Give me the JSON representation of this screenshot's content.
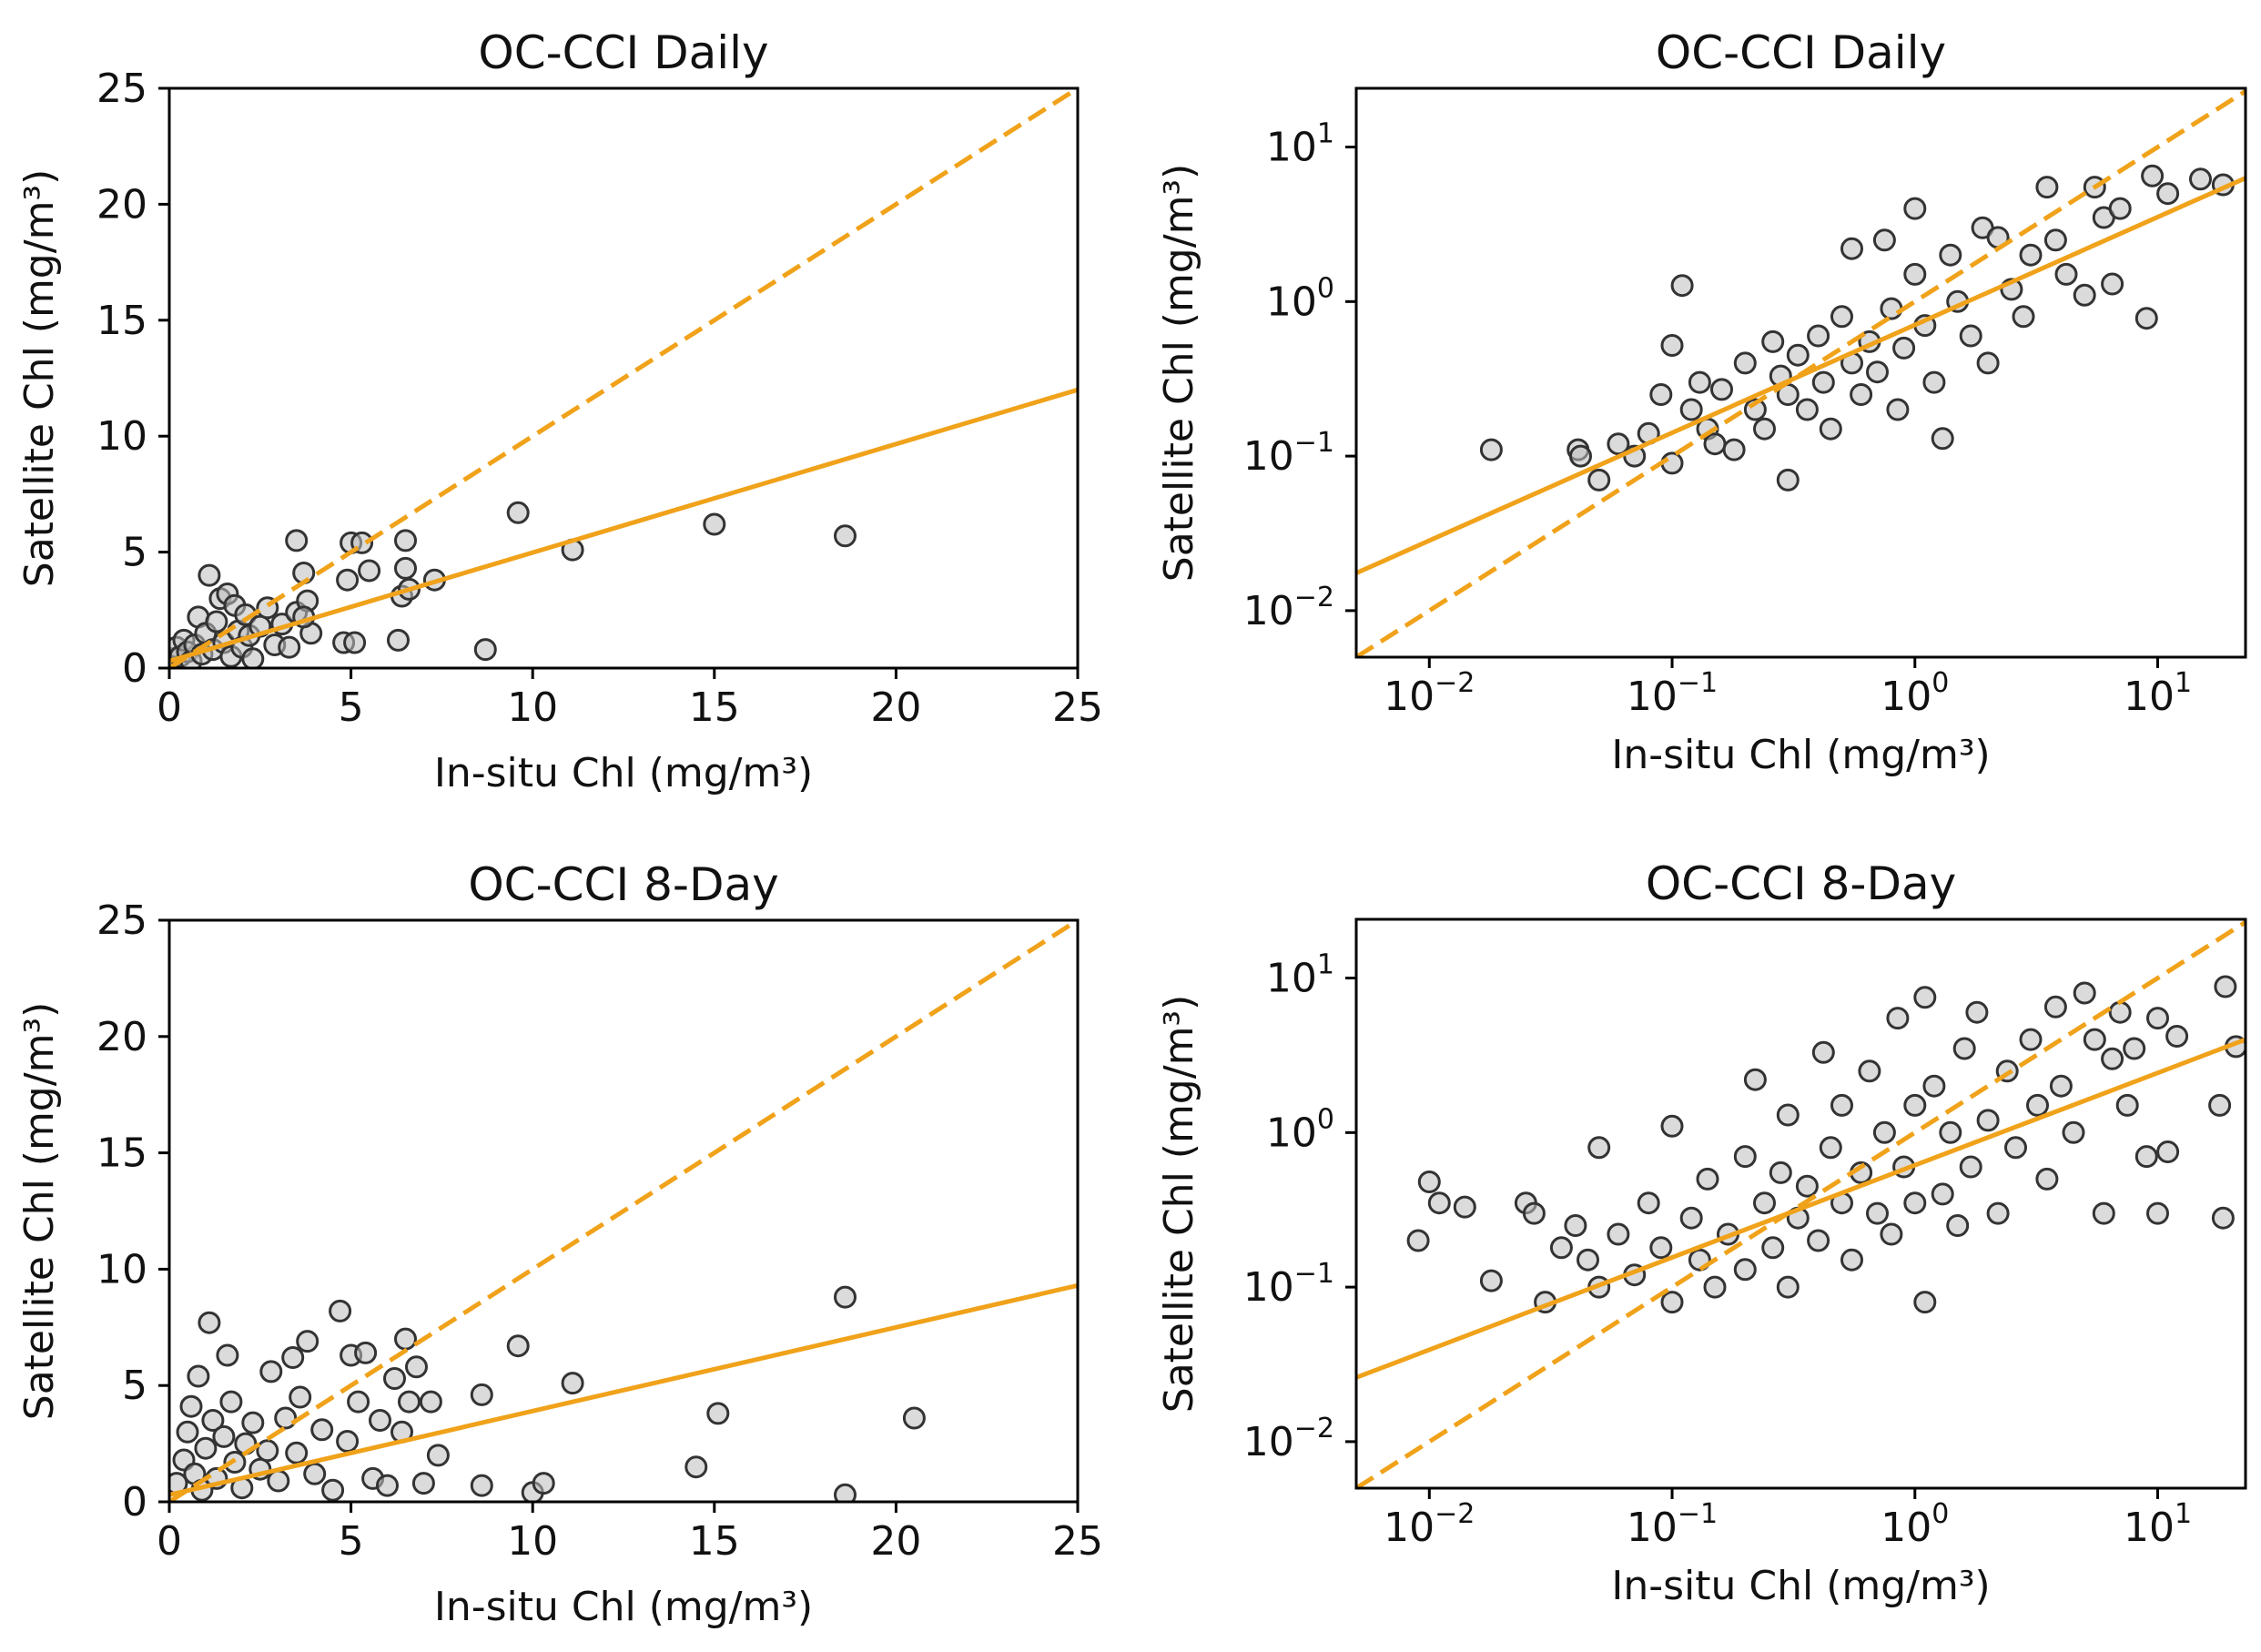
{
  "chart_data": [
    {
      "type": "scatter",
      "title": "OC-CCI Daily",
      "xlabel": "In-situ Chl (mg/m³)",
      "ylabel": "Satellite Chl (mg/m³)",
      "xscale": "linear",
      "yscale": "linear",
      "xlim": [
        0,
        25
      ],
      "ylim": [
        0,
        25
      ],
      "xticks": [
        0,
        5,
        10,
        15,
        20,
        25
      ],
      "yticks": [
        0,
        5,
        10,
        15,
        20,
        25
      ],
      "xtick_labels": [
        "0",
        "5",
        "10",
        "15",
        "20",
        "25"
      ],
      "ytick_labels": [
        "0",
        "5",
        "10",
        "15",
        "20",
        "25"
      ],
      "lines": [
        {
          "name": "1:1 line",
          "style": "dashed",
          "color": "#f0a21a",
          "points": [
            [
              0,
              0
            ],
            [
              25,
              25
            ]
          ]
        },
        {
          "name": "regression fit",
          "style": "solid",
          "color": "#f0a21a",
          "points": [
            [
              0,
              0.3
            ],
            [
              25,
              12.0
            ]
          ]
        }
      ],
      "points": [
        [
          0.1,
          0.4
        ],
        [
          0.2,
          0.9
        ],
        [
          0.3,
          0.5
        ],
        [
          0.4,
          1.2
        ],
        [
          0.5,
          0.7
        ],
        [
          0.6,
          0.3
        ],
        [
          0.7,
          1.0
        ],
        [
          0.8,
          2.2
        ],
        [
          0.9,
          0.6
        ],
        [
          1.0,
          1.5
        ],
        [
          1.1,
          4.0
        ],
        [
          1.2,
          0.8
        ],
        [
          1.3,
          2.0
        ],
        [
          1.4,
          3.0
        ],
        [
          1.5,
          1.1
        ],
        [
          1.6,
          3.2
        ],
        [
          1.7,
          0.5
        ],
        [
          1.8,
          2.7
        ],
        [
          1.9,
          1.6
        ],
        [
          2.0,
          0.9
        ],
        [
          2.1,
          2.3
        ],
        [
          2.2,
          1.4
        ],
        [
          2.3,
          0.4
        ],
        [
          2.5,
          1.8
        ],
        [
          2.7,
          2.6
        ],
        [
          2.9,
          1.0
        ],
        [
          3.1,
          1.9
        ],
        [
          3.3,
          0.9
        ],
        [
          3.5,
          2.4
        ],
        [
          3.5,
          5.5
        ],
        [
          3.7,
          4.1
        ],
        [
          3.8,
          2.9
        ],
        [
          3.9,
          1.5
        ],
        [
          3.7,
          2.2
        ],
        [
          4.8,
          1.1
        ],
        [
          4.9,
          3.8
        ],
        [
          5.0,
          5.4
        ],
        [
          5.1,
          1.1
        ],
        [
          5.3,
          5.4
        ],
        [
          5.5,
          4.2
        ],
        [
          6.3,
          1.2
        ],
        [
          6.4,
          3.1
        ],
        [
          6.5,
          5.5
        ],
        [
          6.5,
          4.3
        ],
        [
          6.6,
          3.4
        ],
        [
          7.3,
          3.8
        ],
        [
          8.7,
          0.8
        ],
        [
          9.6,
          6.7
        ],
        [
          11.1,
          5.1
        ],
        [
          15.0,
          6.2
        ],
        [
          18.6,
          5.7
        ]
      ]
    },
    {
      "type": "scatter",
      "title": "OC-CCI Daily",
      "xlabel": "In-situ Chl (mg/m³)",
      "ylabel": "Satellite Chl (mg/m³)",
      "xscale": "log",
      "yscale": "log",
      "xlim": [
        0.005,
        23
      ],
      "ylim": [
        0.005,
        24
      ],
      "xticks": [
        0.01,
        0.1,
        1,
        10
      ],
      "yticks": [
        0.01,
        0.1,
        1,
        10
      ],
      "xtick_exponents": [
        "−2",
        "−1",
        "0",
        "1"
      ],
      "ytick_exponents": [
        "−2",
        "−1",
        "0",
        "1"
      ],
      "tick_base": "10",
      "lines": [
        {
          "name": "1:1 line",
          "style": "dashed",
          "color": "#f0a21a",
          "points": [
            [
              0.005,
              0.005
            ],
            [
              23,
              23
            ]
          ]
        },
        {
          "name": "regression fit",
          "style": "solid",
          "color": "#f0a21a",
          "points": [
            [
              0.005,
              0.0175
            ],
            [
              23,
              6.3
            ]
          ]
        }
      ],
      "points": [
        [
          0.018,
          0.11
        ],
        [
          0.041,
          0.11
        ],
        [
          0.042,
          0.1
        ],
        [
          0.05,
          0.07
        ],
        [
          0.06,
          0.12
        ],
        [
          0.07,
          0.1
        ],
        [
          0.08,
          0.14
        ],
        [
          0.09,
          0.25
        ],
        [
          0.1,
          0.52
        ],
        [
          0.1,
          0.09
        ],
        [
          0.11,
          1.27
        ],
        [
          0.12,
          0.2
        ],
        [
          0.13,
          0.3
        ],
        [
          0.14,
          0.15
        ],
        [
          0.15,
          0.12
        ],
        [
          0.16,
          0.27
        ],
        [
          0.18,
          0.11
        ],
        [
          0.2,
          0.4
        ],
        [
          0.22,
          0.2
        ],
        [
          0.24,
          0.15
        ],
        [
          0.26,
          0.55
        ],
        [
          0.28,
          0.33
        ],
        [
          0.3,
          0.07
        ],
        [
          0.3,
          0.25
        ],
        [
          0.33,
          0.45
        ],
        [
          0.36,
          0.2
        ],
        [
          0.4,
          0.6
        ],
        [
          0.42,
          0.3
        ],
        [
          0.45,
          0.15
        ],
        [
          0.5,
          0.8
        ],
        [
          0.55,
          2.2
        ],
        [
          0.55,
          0.4
        ],
        [
          0.6,
          0.25
        ],
        [
          0.65,
          0.55
        ],
        [
          0.7,
          0.35
        ],
        [
          0.75,
          2.5
        ],
        [
          0.8,
          0.9
        ],
        [
          0.85,
          0.2
        ],
        [
          0.9,
          0.5
        ],
        [
          1.0,
          4.0
        ],
        [
          1.0,
          1.5
        ],
        [
          1.1,
          0.7
        ],
        [
          1.2,
          0.3
        ],
        [
          1.3,
          0.13
        ],
        [
          1.4,
          2.0
        ],
        [
          1.5,
          1.0
        ],
        [
          1.7,
          0.6
        ],
        [
          1.9,
          3.0
        ],
        [
          2.0,
          0.4
        ],
        [
          2.2,
          2.6
        ],
        [
          2.5,
          1.2
        ],
        [
          2.8,
          0.8
        ],
        [
          3.0,
          2.0
        ],
        [
          3.5,
          5.5
        ],
        [
          3.8,
          2.5
        ],
        [
          4.2,
          1.5
        ],
        [
          5.0,
          1.1
        ],
        [
          5.5,
          5.5
        ],
        [
          6.0,
          3.5
        ],
        [
          6.5,
          1.3
        ],
        [
          7.0,
          4.0
        ],
        [
          9.0,
          0.78
        ],
        [
          9.5,
          6.5
        ],
        [
          11.0,
          5.0
        ],
        [
          15.0,
          6.2
        ],
        [
          18.6,
          5.7
        ]
      ]
    },
    {
      "type": "scatter",
      "title": "OC-CCI 8-Day",
      "xlabel": "In-situ Chl (mg/m³)",
      "ylabel": "Satellite Chl (mg/m³)",
      "xscale": "linear",
      "yscale": "linear",
      "xlim": [
        0,
        25
      ],
      "ylim": [
        0,
        25
      ],
      "xticks": [
        0,
        5,
        10,
        15,
        20,
        25
      ],
      "yticks": [
        0,
        5,
        10,
        15,
        20,
        25
      ],
      "xtick_labels": [
        "0",
        "5",
        "10",
        "15",
        "20",
        "25"
      ],
      "ytick_labels": [
        "0",
        "5",
        "10",
        "15",
        "20",
        "25"
      ],
      "lines": [
        {
          "name": "1:1 line",
          "style": "dashed",
          "color": "#f0a21a",
          "points": [
            [
              0,
              0
            ],
            [
              25,
              25
            ]
          ]
        },
        {
          "name": "regression fit",
          "style": "solid",
          "color": "#f0a21a",
          "points": [
            [
              0,
              0.3
            ],
            [
              25,
              9.3
            ]
          ]
        }
      ],
      "points": [
        [
          0.2,
          0.8
        ],
        [
          0.4,
          1.8
        ],
        [
          0.5,
          3.0
        ],
        [
          0.6,
          4.1
        ],
        [
          0.7,
          1.2
        ],
        [
          0.8,
          5.4
        ],
        [
          0.9,
          0.5
        ],
        [
          1.0,
          2.3
        ],
        [
          1.1,
          7.7
        ],
        [
          1.2,
          3.5
        ],
        [
          1.3,
          1.0
        ],
        [
          1.5,
          2.8
        ],
        [
          1.6,
          6.3
        ],
        [
          1.7,
          4.3
        ],
        [
          1.8,
          1.7
        ],
        [
          2.0,
          0.6
        ],
        [
          2.1,
          2.5
        ],
        [
          2.3,
          3.4
        ],
        [
          2.5,
          1.4
        ],
        [
          2.7,
          2.2
        ],
        [
          2.8,
          5.6
        ],
        [
          3.0,
          0.9
        ],
        [
          3.2,
          3.6
        ],
        [
          3.4,
          6.2
        ],
        [
          3.5,
          2.1
        ],
        [
          3.6,
          4.5
        ],
        [
          3.8,
          6.9
        ],
        [
          4.0,
          1.2
        ],
        [
          4.2,
          3.1
        ],
        [
          4.5,
          0.5
        ],
        [
          4.7,
          8.2
        ],
        [
          4.9,
          2.6
        ],
        [
          5.0,
          6.3
        ],
        [
          5.2,
          4.3
        ],
        [
          5.4,
          6.4
        ],
        [
          5.6,
          1.0
        ],
        [
          5.8,
          3.5
        ],
        [
          6.0,
          0.7
        ],
        [
          6.2,
          5.3
        ],
        [
          6.4,
          3.0
        ],
        [
          6.6,
          4.3
        ],
        [
          6.5,
          7.0
        ],
        [
          6.8,
          5.8
        ],
        [
          7.0,
          0.8
        ],
        [
          7.2,
          4.3
        ],
        [
          7.4,
          2.0
        ],
        [
          8.6,
          4.6
        ],
        [
          8.6,
          0.7
        ],
        [
          9.6,
          6.7
        ],
        [
          10.0,
          0.4
        ],
        [
          10.3,
          0.8
        ],
        [
          11.1,
          5.1
        ],
        [
          14.5,
          1.5
        ],
        [
          15.1,
          3.8
        ],
        [
          18.6,
          8.8
        ],
        [
          18.6,
          0.3
        ],
        [
          20.5,
          3.6
        ]
      ]
    },
    {
      "type": "scatter",
      "title": "OC-CCI 8-Day",
      "xlabel": "In-situ Chl (mg/m³)",
      "ylabel": "Satellite Chl (mg/m³)",
      "xscale": "log",
      "yscale": "log",
      "xlim": [
        0.005,
        23
      ],
      "ylim": [
        0.005,
        24
      ],
      "xticks": [
        0.01,
        0.1,
        1,
        10
      ],
      "yticks": [
        0.01,
        0.1,
        1,
        10
      ],
      "xtick_exponents": [
        "−2",
        "−1",
        "0",
        "1"
      ],
      "ytick_exponents": [
        "−2",
        "−1",
        "0",
        "1"
      ],
      "tick_base": "10",
      "lines": [
        {
          "name": "1:1 line",
          "style": "dashed",
          "color": "#f0a21a",
          "points": [
            [
              0.005,
              0.005
            ],
            [
              23,
              23
            ]
          ]
        },
        {
          "name": "regression fit",
          "style": "solid",
          "color": "#f0a21a",
          "points": [
            [
              0.005,
              0.026
            ],
            [
              23,
              4.0
            ]
          ]
        }
      ],
      "points": [
        [
          0.009,
          0.2
        ],
        [
          0.01,
          0.48
        ],
        [
          0.011,
          0.35
        ],
        [
          0.014,
          0.33
        ],
        [
          0.018,
          0.11
        ],
        [
          0.025,
          0.35
        ],
        [
          0.027,
          0.3
        ],
        [
          0.03,
          0.08
        ],
        [
          0.035,
          0.18
        ],
        [
          0.04,
          0.25
        ],
        [
          0.045,
          0.15
        ],
        [
          0.05,
          0.8
        ],
        [
          0.05,
          0.1
        ],
        [
          0.06,
          0.22
        ],
        [
          0.07,
          0.12
        ],
        [
          0.08,
          0.35
        ],
        [
          0.09,
          0.18
        ],
        [
          0.1,
          1.1
        ],
        [
          0.1,
          0.08
        ],
        [
          0.12,
          0.28
        ],
        [
          0.13,
          0.15
        ],
        [
          0.14,
          0.5
        ],
        [
          0.15,
          0.1
        ],
        [
          0.17,
          0.22
        ],
        [
          0.2,
          0.7
        ],
        [
          0.2,
          0.13
        ],
        [
          0.22,
          2.2
        ],
        [
          0.24,
          0.35
        ],
        [
          0.26,
          0.18
        ],
        [
          0.28,
          0.55
        ],
        [
          0.3,
          0.1
        ],
        [
          0.3,
          1.3
        ],
        [
          0.33,
          0.28
        ],
        [
          0.36,
          0.45
        ],
        [
          0.4,
          0.2
        ],
        [
          0.42,
          3.3
        ],
        [
          0.45,
          0.8
        ],
        [
          0.5,
          0.35
        ],
        [
          0.5,
          1.5
        ],
        [
          0.55,
          0.15
        ],
        [
          0.6,
          0.55
        ],
        [
          0.65,
          2.5
        ],
        [
          0.7,
          0.3
        ],
        [
          0.75,
          1.0
        ],
        [
          0.8,
          0.22
        ],
        [
          0.85,
          5.5
        ],
        [
          0.9,
          0.6
        ],
        [
          1.0,
          1.5
        ],
        [
          1.0,
          0.35
        ],
        [
          1.1,
          7.5
        ],
        [
          1.1,
          0.08
        ],
        [
          1.2,
          2.0
        ],
        [
          1.3,
          0.4
        ],
        [
          1.4,
          1.0
        ],
        [
          1.5,
          0.25
        ],
        [
          1.6,
          3.5
        ],
        [
          1.7,
          0.6
        ],
        [
          1.8,
          6.0
        ],
        [
          2.0,
          1.2
        ],
        [
          2.2,
          0.3
        ],
        [
          2.4,
          2.5
        ],
        [
          2.6,
          0.8
        ],
        [
          3.0,
          4.0
        ],
        [
          3.2,
          1.5
        ],
        [
          3.5,
          0.5
        ],
        [
          3.8,
          6.5
        ],
        [
          4.0,
          2.0
        ],
        [
          4.5,
          1.0
        ],
        [
          5.0,
          8.0
        ],
        [
          5.5,
          4.0
        ],
        [
          6.0,
          0.3
        ],
        [
          6.5,
          3.0
        ],
        [
          7.0,
          6.0
        ],
        [
          7.5,
          1.5
        ],
        [
          8.0,
          3.5
        ],
        [
          9.0,
          0.7
        ],
        [
          10.0,
          0.3
        ],
        [
          10.0,
          5.5
        ],
        [
          11.0,
          0.75
        ],
        [
          12.0,
          4.2
        ],
        [
          18.0,
          1.5
        ],
        [
          18.6,
          0.28
        ],
        [
          19.0,
          8.8
        ],
        [
          21.0,
          3.6
        ]
      ]
    }
  ]
}
